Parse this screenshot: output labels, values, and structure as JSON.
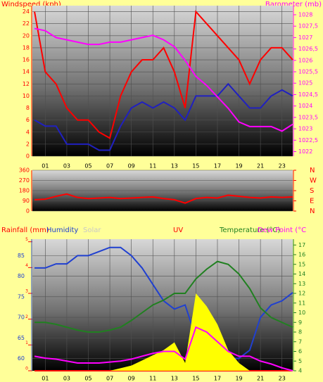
{
  "chart_data": [
    {
      "type": "line",
      "y_label": "Windspeed (kph)",
      "y2_label": "Barometer (mb)",
      "x": [
        0,
        1,
        2,
        3,
        4,
        5,
        6,
        7,
        8,
        9,
        10,
        11,
        12,
        13,
        14,
        15,
        16,
        17,
        18,
        19,
        20,
        21,
        22,
        23,
        24
      ],
      "xlim": [
        -0.2,
        24
      ],
      "xticks": [
        {
          "value": 1,
          "label": "01"
        },
        {
          "value": 3,
          "label": "03"
        },
        {
          "value": 5,
          "label": "05"
        },
        {
          "value": 7,
          "label": "07"
        },
        {
          "value": 9,
          "label": "09"
        },
        {
          "value": 11,
          "label": "11"
        },
        {
          "value": 13,
          "label": "13"
        },
        {
          "value": 15,
          "label": "15"
        },
        {
          "value": 17,
          "label": "17"
        },
        {
          "value": 19,
          "label": "19"
        },
        {
          "value": 21,
          "label": "21"
        },
        {
          "value": 23,
          "label": "23"
        }
      ],
      "ylim": [
        0,
        25
      ],
      "yticks": [
        0,
        2,
        4,
        6,
        8,
        10,
        12,
        14,
        16,
        18,
        20,
        22,
        24
      ],
      "y2lim": [
        1021.8,
        1028.4
      ],
      "y2ticks": [
        1022,
        {
          "value": 1022.5,
          "label": "1022,5"
        },
        1023,
        {
          "value": 1023.5,
          "label": "1023,5"
        },
        1024,
        {
          "value": 1024.5,
          "label": "1024,5"
        },
        1025,
        {
          "value": 1025.5,
          "label": "1025,5"
        },
        1026,
        {
          "value": 1026.5,
          "label": "1026,5"
        },
        1027,
        {
          "value": 1027.5,
          "label": "1027,5"
        },
        1028
      ],
      "grid": true,
      "series": [
        {
          "color": "#ff0000",
          "axis": "y",
          "values": [
            24,
            14,
            12,
            8,
            6,
            6,
            4,
            3,
            10,
            14,
            16,
            16,
            18,
            14,
            8,
            24,
            22,
            20,
            18,
            16,
            12,
            16,
            18,
            18,
            16
          ]
        },
        {
          "color": "#2020c0",
          "axis": "y",
          "values": [
            6,
            5,
            5,
            2,
            2,
            2,
            1,
            1,
            5,
            8,
            9,
            8,
            9,
            8,
            6,
            10,
            10,
            10,
            12,
            10,
            8,
            8,
            10,
            11,
            10
          ]
        },
        {
          "color": "#ff00ff",
          "axis": "y2",
          "values": [
            1027.4,
            1027.3,
            1027.0,
            1026.9,
            1026.8,
            1026.7,
            1026.7,
            1026.8,
            1026.8,
            1026.9,
            1027.0,
            1027.1,
            1026.9,
            1026.6,
            1026.0,
            1025.3,
            1024.9,
            1024.4,
            1023.9,
            1023.3,
            1023.1,
            1023.1,
            1023.1,
            1022.9,
            1023.2
          ]
        }
      ]
    },
    {
      "type": "line",
      "x": [
        0,
        1,
        2,
        3,
        4,
        5,
        6,
        7,
        8,
        9,
        10,
        11,
        12,
        13,
        14,
        15,
        16,
        17,
        18,
        19,
        20,
        21,
        22,
        23,
        24
      ],
      "xlim": [
        -0.2,
        24
      ],
      "ylim": [
        0,
        360
      ],
      "yticks": [
        0,
        90,
        180,
        270,
        360
      ],
      "y2lim": [
        0,
        360
      ],
      "y2ticks": [
        {
          "value": 360,
          "label": "N"
        },
        {
          "value": 270,
          "label": "W"
        },
        {
          "value": 180,
          "label": "S"
        },
        {
          "value": 90,
          "label": "E"
        },
        {
          "value": 0,
          "label": "N"
        }
      ],
      "grid": true,
      "series": [
        {
          "color": "#ff0000",
          "axis": "y",
          "values": [
            100,
            105,
            130,
            150,
            120,
            110,
            115,
            120,
            110,
            115,
            120,
            125,
            110,
            100,
            70,
            110,
            120,
            115,
            140,
            130,
            120,
            115,
            125,
            120,
            125
          ]
        }
      ]
    },
    {
      "type": "line",
      "x": [
        0,
        1,
        2,
        3,
        4,
        5,
        6,
        7,
        8,
        9,
        10,
        11,
        12,
        13,
        14,
        15,
        16,
        17,
        18,
        19,
        20,
        21,
        22,
        23,
        24
      ],
      "xlim": [
        -0.2,
        24
      ],
      "xticks": [
        {
          "value": 1,
          "label": "01"
        },
        {
          "value": 3,
          "label": "03"
        },
        {
          "value": 5,
          "label": "05"
        },
        {
          "value": 7,
          "label": "07"
        },
        {
          "value": 9,
          "label": "09"
        },
        {
          "value": 11,
          "label": "11"
        },
        {
          "value": 13,
          "label": "13"
        },
        {
          "value": 15,
          "label": "15"
        },
        {
          "value": 17,
          "label": "17"
        },
        {
          "value": 19,
          "label": "19"
        },
        {
          "value": 21,
          "label": "21"
        },
        {
          "value": 23,
          "label": "23"
        }
      ],
      "ylim": [
        57,
        89
      ],
      "yticks": [
        60,
        65,
        70,
        75,
        80,
        85
      ],
      "rainlim": [
        0,
        5.1
      ],
      "rainticks": [
        0,
        1,
        2,
        3,
        4,
        5
      ],
      "y2lim": [
        4,
        17.6
      ],
      "y2ticks": [
        4,
        5,
        6,
        7,
        8,
        9,
        10,
        11,
        12,
        13,
        14,
        15,
        16,
        17
      ],
      "grid": true,
      "series": [
        {
          "name": "Rainfall (mm)",
          "color": "#ff0000",
          "axis": "rain",
          "values": [
            0,
            0,
            0,
            0,
            0,
            0,
            0,
            0,
            0,
            0,
            0,
            0,
            0,
            0,
            0,
            0,
            0,
            0,
            0,
            0,
            0,
            0,
            0,
            0,
            0
          ]
        },
        {
          "name": "Humidity",
          "color": "#2040d0",
          "axis": "y",
          "values": [
            82,
            82,
            83,
            83,
            85,
            85,
            86,
            87,
            87,
            85,
            82,
            78,
            74,
            72,
            73,
            65,
            63,
            62,
            60,
            60,
            62,
            70,
            73,
            74,
            76
          ]
        },
        {
          "name": "Solar",
          "color": "#c8c8c8",
          "axis": "rain",
          "values": [
            null,
            null,
            null,
            null,
            null,
            null,
            null,
            null,
            null,
            null,
            null,
            null,
            null,
            null,
            null,
            null,
            null,
            null,
            null,
            null,
            null,
            null,
            null,
            null,
            null
          ]
        },
        {
          "name": "UV",
          "color": "#ffff00",
          "axis": "rain",
          "kind": "area",
          "values": [
            0,
            0,
            0,
            0,
            0,
            0,
            0,
            0,
            0.1,
            0.2,
            0.4,
            0.6,
            0.8,
            1.1,
            0.3,
            3.0,
            2.5,
            1.8,
            0.8,
            0.3,
            0,
            0,
            0,
            0,
            0
          ]
        },
        {
          "name": "Temperature (°C)",
          "color": "#208020",
          "axis": "y2",
          "values": [
            9,
            9,
            8.8,
            8.5,
            8.2,
            8,
            8,
            8.2,
            8.5,
            9.2,
            10,
            10.8,
            11.3,
            12,
            12,
            13.5,
            14.5,
            15.3,
            15,
            14,
            12.5,
            10.5,
            9.5,
            9,
            8.5
          ]
        },
        {
          "name": "Dew Point (°C",
          "color": "#ff00ff",
          "axis": "y2",
          "values": [
            5.5,
            5.3,
            5.2,
            5,
            4.8,
            4.8,
            4.8,
            4.9,
            5,
            5.2,
            5.5,
            5.8,
            6,
            6,
            5.2,
            8.5,
            8,
            7,
            6,
            5.5,
            5.5,
            5,
            4.7,
            4.3,
            4.0
          ]
        }
      ]
    }
  ]
}
